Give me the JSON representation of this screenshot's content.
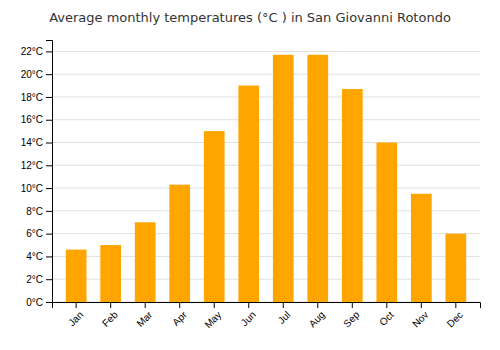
{
  "chart_data": {
    "type": "bar",
    "title": "Average monthly temperatures (°C ) in San Giovanni Rotondo",
    "categories": [
      "Jan",
      "Feb",
      "Mar",
      "Apr",
      "May",
      "Jun",
      "Jul",
      "Aug",
      "Sep",
      "Oct",
      "Nov",
      "Dec"
    ],
    "values": [
      4.6,
      5.0,
      7.0,
      10.3,
      15.0,
      19.0,
      21.7,
      21.7,
      18.7,
      14.0,
      9.5,
      6.0
    ],
    "color": "#FFA500",
    "ylim": [
      0,
      23
    ],
    "yticks": [
      {
        "value": 0,
        "label": "0°C"
      },
      {
        "value": 2,
        "label": "2°C"
      },
      {
        "value": 4,
        "label": "4°C"
      },
      {
        "value": 6,
        "label": "6°C"
      },
      {
        "value": 8,
        "label": "8°C"
      },
      {
        "value": 10,
        "label": "10°C"
      },
      {
        "value": 12,
        "label": "12°C"
      },
      {
        "value": 14,
        "label": "14°C"
      },
      {
        "value": 16,
        "label": "16°C"
      },
      {
        "value": 18,
        "label": "18°C"
      },
      {
        "value": 20,
        "label": "20°C"
      },
      {
        "value": 22,
        "label": "22°C"
      }
    ],
    "grid": true
  }
}
